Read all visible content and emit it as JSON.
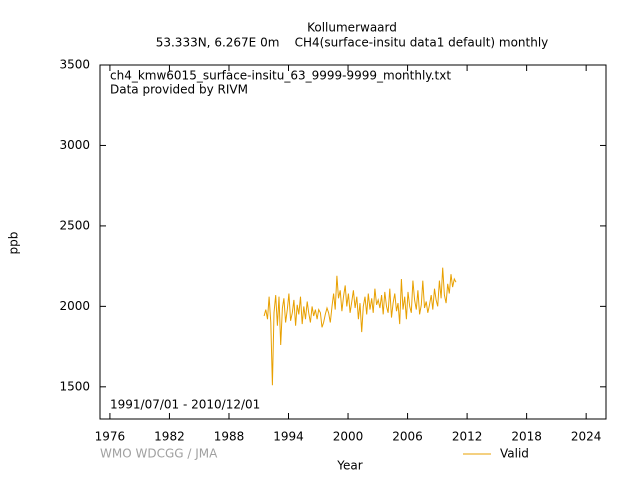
{
  "chart_data": {
    "type": "line",
    "title": "Kollumerwaard",
    "subtitle": "53.333N, 6.267E 0m    CH4(surface-insitu data1 default) monthly",
    "annotations": [
      "ch4_kmw6015_surface-insitu_63_9999-9999_monthly.txt",
      "Data provided by RIVM",
      "1991/07/01 - 2010/12/01",
      "WMO WDCGG / JMA"
    ],
    "x_label": "Year",
    "y_label": "ppb",
    "xlim": [
      1975,
      2026
    ],
    "xticks": [
      1976,
      1982,
      1988,
      1994,
      2000,
      2006,
      2012,
      2018,
      2024
    ],
    "ylim": [
      1300,
      3500
    ],
    "yticks": [
      1500,
      2000,
      2500,
      3000,
      3500
    ],
    "legend": "lower right",
    "x": [
      1991.54,
      1991.71,
      1991.88,
      1992.04,
      1992.21,
      1992.38,
      1992.54,
      1992.71,
      1992.88,
      1993.04,
      1993.21,
      1993.38,
      1993.54,
      1993.71,
      1993.88,
      1994.04,
      1994.21,
      1994.38,
      1994.54,
      1994.71,
      1994.88,
      1995.04,
      1995.21,
      1995.38,
      1995.54,
      1995.71,
      1995.88,
      1996.04,
      1996.21,
      1996.38,
      1996.54,
      1996.71,
      1996.88,
      1997.04,
      1997.21,
      1997.38,
      1997.54,
      1997.71,
      1997.88,
      1998.04,
      1998.21,
      1998.38,
      1998.54,
      1998.71,
      1998.88,
      1999.04,
      1999.21,
      1999.38,
      1999.54,
      1999.71,
      1999.88,
      2000.04,
      2000.21,
      2000.38,
      2000.54,
      2000.71,
      2000.88,
      2001.04,
      2001.21,
      2001.38,
      2001.54,
      2001.71,
      2001.88,
      2002.04,
      2002.21,
      2002.38,
      2002.54,
      2002.71,
      2002.88,
      2003.04,
      2003.21,
      2003.38,
      2003.54,
      2003.71,
      2003.88,
      2004.04,
      2004.21,
      2004.38,
      2004.54,
      2004.71,
      2004.88,
      2005.04,
      2005.21,
      2005.38,
      2005.54,
      2005.71,
      2005.88,
      2006.04,
      2006.21,
      2006.38,
      2006.54,
      2006.71,
      2006.88,
      2007.04,
      2007.21,
      2007.38,
      2007.54,
      2007.71,
      2007.88,
      2008.04,
      2008.21,
      2008.38,
      2008.54,
      2008.71,
      2008.88,
      2009.04,
      2009.21,
      2009.38,
      2009.54,
      2009.71,
      2009.88,
      2010.04,
      2010.21,
      2010.38,
      2010.54,
      2010.71,
      2010.88
    ],
    "series": [
      {
        "name": "Valid",
        "color": "#e8a000",
        "values": [
          1940,
          1980,
          1920,
          2060,
          1900,
          1510,
          1960,
          2070,
          1880,
          2060,
          1760,
          1990,
          2050,
          1900,
          1980,
          2080,
          1910,
          1960,
          2040,
          1880,
          2010,
          1950,
          2060,
          1890,
          2000,
          1920,
          2030,
          1960,
          1900,
          2000,
          1940,
          1980,
          1920,
          1980,
          1960,
          1870,
          1900,
          1950,
          1990,
          1960,
          1900,
          2000,
          2080,
          1980,
          2190,
          2050,
          2100,
          1970,
          2060,
          2130,
          2000,
          2080,
          1960,
          2030,
          2100,
          1990,
          2060,
          1920,
          2020,
          1840,
          2000,
          2060,
          1950,
          2080,
          1980,
          2050,
          1960,
          2110,
          2010,
          2040,
          1990,
          2070,
          1950,
          2090,
          2000,
          1960,
          2110,
          1930,
          2020,
          2080,
          1970,
          2020,
          1890,
          2170,
          1980,
          2060,
          1920,
          2090,
          2000,
          1960,
          2160,
          2040,
          1980,
          2100,
          1950,
          2010,
          2160,
          1990,
          2030,
          1960,
          2010,
          2070,
          1980,
          2110,
          2040,
          2000,
          2160,
          2050,
          2240,
          2070,
          2020,
          2140,
          2080,
          2200,
          2120,
          2170,
          2150
        ]
      }
    ]
  }
}
